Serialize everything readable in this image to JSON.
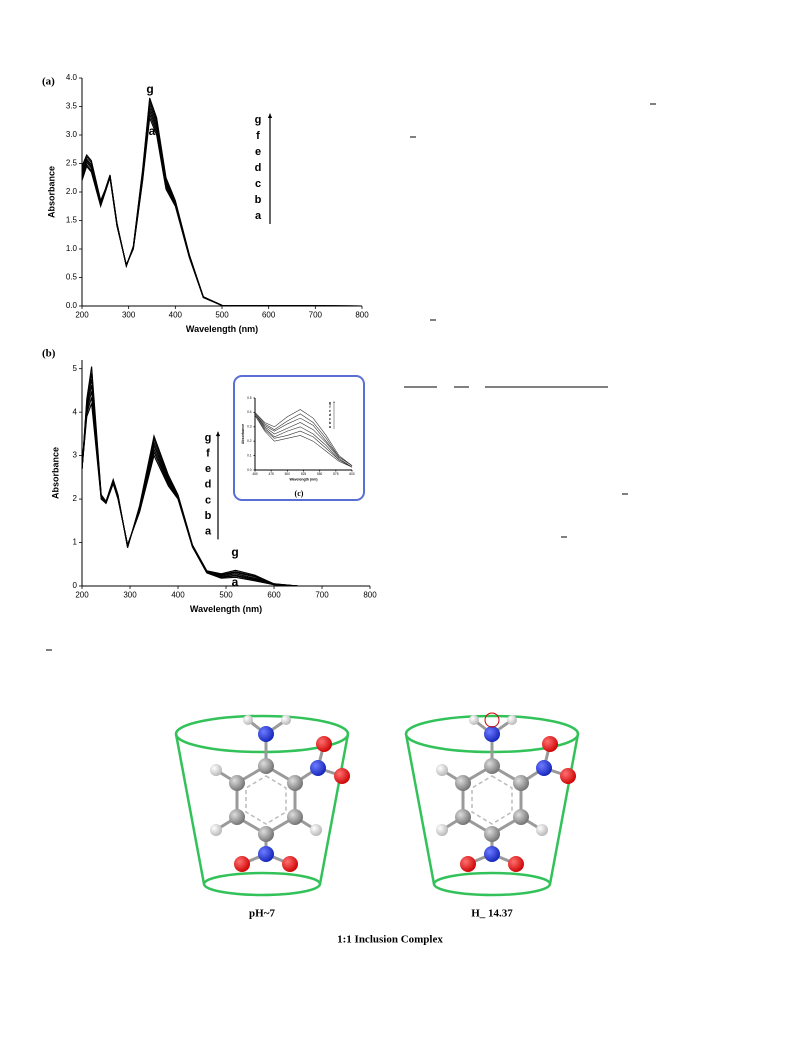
{
  "chart_data": [
    {
      "type": "line",
      "label": "(a)",
      "xlabel": "Wavelength (nm)",
      "ylabel": "Absorbance",
      "x": [
        200,
        210,
        220,
        240,
        250,
        260,
        275,
        295,
        310,
        330,
        345,
        360,
        380,
        400,
        430,
        460,
        500,
        800
      ],
      "series": [
        {
          "name": "a",
          "color": "#000000",
          "values": [
            2.2,
            2.45,
            2.35,
            1.75,
            2.0,
            2.25,
            1.4,
            0.72,
            1.0,
            2.2,
            3.3,
            3.0,
            2.05,
            1.75,
            0.85,
            0.15,
            0.01,
            0
          ]
        },
        {
          "name": "b",
          "color": "#000000",
          "values": [
            2.24,
            2.48,
            2.38,
            1.77,
            2.01,
            2.26,
            1.41,
            0.72,
            1.01,
            2.23,
            3.36,
            3.05,
            2.08,
            1.77,
            0.86,
            0.15,
            0.01,
            0
          ]
        },
        {
          "name": "c",
          "color": "#000000",
          "values": [
            2.28,
            2.52,
            2.42,
            1.78,
            2.02,
            2.27,
            1.42,
            0.71,
            1.02,
            2.27,
            3.42,
            3.1,
            2.12,
            1.78,
            0.87,
            0.15,
            0.01,
            0
          ]
        },
        {
          "name": "d",
          "color": "#000000",
          "values": [
            2.33,
            2.55,
            2.45,
            1.8,
            2.03,
            2.28,
            1.43,
            0.71,
            1.03,
            2.3,
            3.48,
            3.15,
            2.15,
            1.8,
            0.88,
            0.16,
            0.01,
            0
          ]
        },
        {
          "name": "e",
          "color": "#000000",
          "values": [
            2.37,
            2.58,
            2.48,
            1.82,
            2.04,
            2.28,
            1.43,
            0.71,
            1.03,
            2.33,
            3.54,
            3.2,
            2.18,
            1.82,
            0.88,
            0.16,
            0.01,
            0
          ]
        },
        {
          "name": "f",
          "color": "#000000",
          "values": [
            2.41,
            2.62,
            2.52,
            1.83,
            2.04,
            2.29,
            1.44,
            0.7,
            1.04,
            2.37,
            3.6,
            3.25,
            2.22,
            1.83,
            0.89,
            0.16,
            0.01,
            0
          ]
        },
        {
          "name": "g",
          "color": "#000000",
          "values": [
            2.45,
            2.65,
            2.55,
            1.85,
            2.05,
            2.3,
            1.45,
            0.7,
            1.05,
            2.4,
            3.65,
            3.3,
            2.25,
            1.85,
            0.9,
            0.16,
            0.01,
            0
          ]
        }
      ],
      "xlim": [
        200,
        800
      ],
      "xticks": [
        200,
        300,
        400,
        500,
        600,
        700,
        800
      ],
      "ylim": [
        0,
        4
      ],
      "yticks": [
        {
          "value": 0,
          "label": "0.0"
        },
        {
          "value": 0.5,
          "label": "0.5"
        },
        {
          "value": 1,
          "label": "1.0"
        },
        {
          "value": 1.5,
          "label": "1.5"
        },
        {
          "value": 2,
          "label": "2.0"
        },
        {
          "value": 2.5,
          "label": "2.5"
        },
        {
          "value": 3,
          "label": "3.0"
        },
        {
          "value": 3.5,
          "label": "3.5"
        },
        {
          "value": 4,
          "label": "4.0"
        }
      ]
    },
    {
      "type": "line",
      "label": "(b)",
      "xlabel": "Wavelength (nm)",
      "ylabel": "Absorbance",
      "x": [
        200,
        210,
        220,
        240,
        250,
        265,
        275,
        295,
        320,
        350,
        380,
        400,
        430,
        460,
        490,
        520,
        560,
        600,
        650,
        800
      ],
      "series": [
        {
          "name": "a",
          "color": "#000000",
          "values": [
            2.7,
            3.9,
            4.2,
            2.0,
            1.9,
            2.35,
            2.0,
            0.95,
            1.7,
            3.0,
            2.3,
            2.0,
            0.9,
            0.3,
            0.18,
            0.2,
            0.12,
            0.03,
            0,
            0
          ]
        },
        {
          "name": "b",
          "color": "#000000",
          "values": [
            2.7,
            3.97,
            4.34,
            2.02,
            1.91,
            2.37,
            2.02,
            0.94,
            1.72,
            3.08,
            2.34,
            2.02,
            0.91,
            0.31,
            0.2,
            0.23,
            0.14,
            0.03,
            0,
            0
          ]
        },
        {
          "name": "c",
          "color": "#000000",
          "values": [
            2.7,
            4.03,
            4.48,
            2.03,
            1.92,
            2.38,
            2.03,
            0.93,
            1.75,
            3.15,
            2.38,
            2.03,
            0.92,
            0.32,
            0.21,
            0.25,
            0.16,
            0.04,
            0,
            0
          ]
        },
        {
          "name": "d",
          "color": "#000000",
          "values": [
            2.7,
            4.1,
            4.62,
            2.05,
            1.92,
            2.4,
            2.05,
            0.92,
            1.77,
            3.23,
            2.42,
            2.05,
            0.92,
            0.32,
            0.23,
            0.28,
            0.18,
            0.04,
            0,
            0
          ]
        },
        {
          "name": "e",
          "color": "#000000",
          "values": [
            2.7,
            4.17,
            4.76,
            2.07,
            1.93,
            2.42,
            2.07,
            0.9,
            1.8,
            3.3,
            2.46,
            2.07,
            0.93,
            0.33,
            0.25,
            0.31,
            0.21,
            0.04,
            0,
            0
          ]
        },
        {
          "name": "f",
          "color": "#000000",
          "values": [
            2.7,
            4.23,
            4.9,
            2.08,
            1.94,
            2.43,
            2.08,
            0.89,
            1.82,
            3.38,
            2.5,
            2.08,
            0.94,
            0.34,
            0.26,
            0.33,
            0.23,
            0.05,
            0,
            0
          ]
        },
        {
          "name": "g",
          "color": "#000000",
          "values": [
            2.7,
            4.3,
            5.05,
            2.1,
            1.95,
            2.45,
            2.1,
            0.88,
            1.85,
            3.45,
            2.55,
            2.1,
            0.95,
            0.35,
            0.28,
            0.36,
            0.25,
            0.05,
            0,
            0
          ]
        }
      ],
      "xlim": [
        200,
        800
      ],
      "xticks": [
        200,
        300,
        400,
        500,
        600,
        700,
        800
      ],
      "ylim": [
        0,
        5.2
      ],
      "yticks": [
        0,
        1,
        2,
        3,
        4,
        5
      ]
    },
    {
      "type": "line",
      "label": "(c)",
      "xlabel": "Wavelength (nm)",
      "ylabel": "Absorbance",
      "x": [
        450,
        465,
        480,
        500,
        520,
        540,
        560,
        580,
        600
      ],
      "series": [
        {
          "name": "a",
          "color": "#333333",
          "values": [
            0.38,
            0.27,
            0.2,
            0.22,
            0.24,
            0.2,
            0.13,
            0.06,
            0.02
          ]
        },
        {
          "name": "b",
          "color": "#333333",
          "values": [
            0.38,
            0.28,
            0.22,
            0.24,
            0.27,
            0.23,
            0.15,
            0.07,
            0.02
          ]
        },
        {
          "name": "c",
          "color": "#333333",
          "values": [
            0.39,
            0.29,
            0.23,
            0.27,
            0.3,
            0.25,
            0.17,
            0.07,
            0.02
          ]
        },
        {
          "name": "d",
          "color": "#333333",
          "values": [
            0.39,
            0.3,
            0.25,
            0.29,
            0.33,
            0.28,
            0.19,
            0.08,
            0.02
          ]
        },
        {
          "name": "e",
          "color": "#333333",
          "values": [
            0.39,
            0.31,
            0.27,
            0.32,
            0.36,
            0.31,
            0.2,
            0.09,
            0.03
          ]
        },
        {
          "name": "f",
          "color": "#333333",
          "values": [
            0.4,
            0.32,
            0.28,
            0.34,
            0.39,
            0.33,
            0.22,
            0.09,
            0.03
          ]
        },
        {
          "name": "g",
          "color": "#333333",
          "values": [
            0.4,
            0.33,
            0.3,
            0.37,
            0.42,
            0.36,
            0.24,
            0.1,
            0.03
          ]
        }
      ],
      "xlim": [
        450,
        600
      ],
      "xticks": [
        450,
        475,
        500,
        525,
        550,
        575,
        600
      ],
      "ylim": [
        0,
        0.5
      ],
      "yticks": [
        {
          "value": 0,
          "label": "0.0"
        },
        {
          "value": 0.1,
          "label": "0.1"
        },
        {
          "value": 0.2,
          "label": "0.2"
        },
        {
          "value": 0.3,
          "label": "0.3"
        },
        {
          "value": 0.4,
          "label": "0.4"
        },
        {
          "value": 0.5,
          "label": "0.5"
        }
      ]
    }
  ],
  "diagram": {
    "captions": [
      "pH~7",
      "H_ 14.37"
    ],
    "title": "1:1 Inclusion Complex"
  }
}
